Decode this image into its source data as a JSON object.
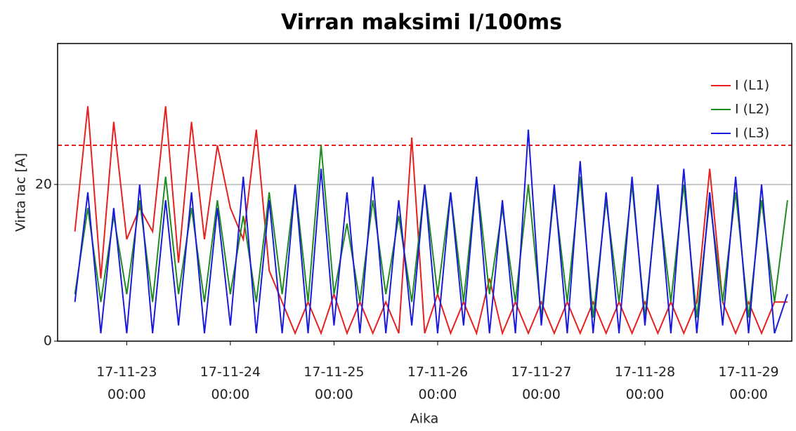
{
  "chart_data": {
    "type": "line",
    "title": "Virran maksimi I/100ms",
    "xlabel": "Aika",
    "ylabel": "Virta Iac [A]",
    "x": [
      "17-11-22 12:00",
      "17-11-22 15:00",
      "17-11-22 18:00",
      "17-11-22 21:00",
      "17-11-23 00:00",
      "17-11-23 03:00",
      "17-11-23 06:00",
      "17-11-23 09:00",
      "17-11-23 12:00",
      "17-11-23 15:00",
      "17-11-23 18:00",
      "17-11-23 21:00",
      "17-11-24 00:00",
      "17-11-24 03:00",
      "17-11-24 06:00",
      "17-11-24 09:00",
      "17-11-24 12:00",
      "17-11-24 15:00",
      "17-11-24 18:00",
      "17-11-24 21:00",
      "17-11-25 00:00",
      "17-11-25 03:00",
      "17-11-25 06:00",
      "17-11-25 09:00",
      "17-11-25 12:00",
      "17-11-25 15:00",
      "17-11-25 18:00",
      "17-11-25 21:00",
      "17-11-26 00:00",
      "17-11-26 03:00",
      "17-11-26 06:00",
      "17-11-26 09:00",
      "17-11-26 12:00",
      "17-11-26 15:00",
      "17-11-26 18:00",
      "17-11-26 21:00",
      "17-11-27 00:00",
      "17-11-27 03:00",
      "17-11-27 06:00",
      "17-11-27 09:00",
      "17-11-27 12:00",
      "17-11-27 15:00",
      "17-11-27 18:00",
      "17-11-27 21:00",
      "17-11-28 00:00",
      "17-11-28 03:00",
      "17-11-28 06:00",
      "17-11-28 09:00",
      "17-11-28 12:00",
      "17-11-28 15:00",
      "17-11-28 18:00",
      "17-11-28 21:00",
      "17-11-29 00:00",
      "17-11-29 03:00",
      "17-11-29 06:00",
      "17-11-29 09:00"
    ],
    "series": [
      {
        "name": "I (L1)",
        "color": "#e8201e",
        "values": [
          14,
          30,
          8,
          28,
          13,
          17,
          14,
          30,
          10,
          28,
          13,
          25,
          17,
          13,
          27,
          9,
          5,
          1,
          5,
          1,
          6,
          1,
          5,
          1,
          5,
          1,
          26,
          1,
          6,
          1,
          5,
          1,
          8,
          1,
          5,
          1,
          5,
          1,
          5,
          1,
          5,
          1,
          5,
          1,
          5,
          1,
          5,
          1,
          5,
          22,
          5,
          1,
          5,
          1,
          5,
          5
        ]
      },
      {
        "name": "I (L2)",
        "color": "#1e8c1e",
        "values": [
          6,
          17,
          5,
          16,
          6,
          18,
          5,
          21,
          6,
          17,
          5,
          18,
          6,
          16,
          5,
          19,
          6,
          20,
          5,
          25,
          6,
          15,
          5,
          18,
          6,
          16,
          5,
          20,
          6,
          19,
          5,
          21,
          6,
          17,
          5,
          20,
          3,
          19,
          5,
          21,
          3,
          18,
          5,
          20,
          3,
          19,
          5,
          20,
          3,
          18,
          5,
          19,
          3,
          18,
          5,
          18
        ]
      },
      {
        "name": "I (L3)",
        "color": "#1a1adc",
        "values": [
          5,
          19,
          1,
          17,
          1,
          20,
          1,
          18,
          2,
          19,
          1,
          17,
          2,
          21,
          1,
          18,
          1,
          20,
          1,
          22,
          2,
          19,
          1,
          21,
          1,
          18,
          2,
          20,
          1,
          19,
          2,
          21,
          1,
          18,
          1,
          27,
          2,
          20,
          1,
          23,
          1,
          19,
          1,
          21,
          2,
          20,
          1,
          22,
          1,
          19,
          2,
          21,
          1,
          20,
          1,
          6
        ]
      }
    ],
    "xlim": [
      "17-11-22 08:00",
      "17-11-29 10:00"
    ],
    "xticks": [
      "17-11-23 00:00",
      "17-11-24 00:00",
      "17-11-25 00:00",
      "17-11-26 00:00",
      "17-11-27 00:00",
      "17-11-28 00:00",
      "17-11-29 00:00"
    ],
    "ylim": [
      0,
      38
    ],
    "yticks": [
      0,
      20
    ],
    "grid": true,
    "hlines": [
      {
        "value": 25,
        "color": "#e8201e",
        "style": "dashed"
      }
    ],
    "legend": "upper right"
  }
}
